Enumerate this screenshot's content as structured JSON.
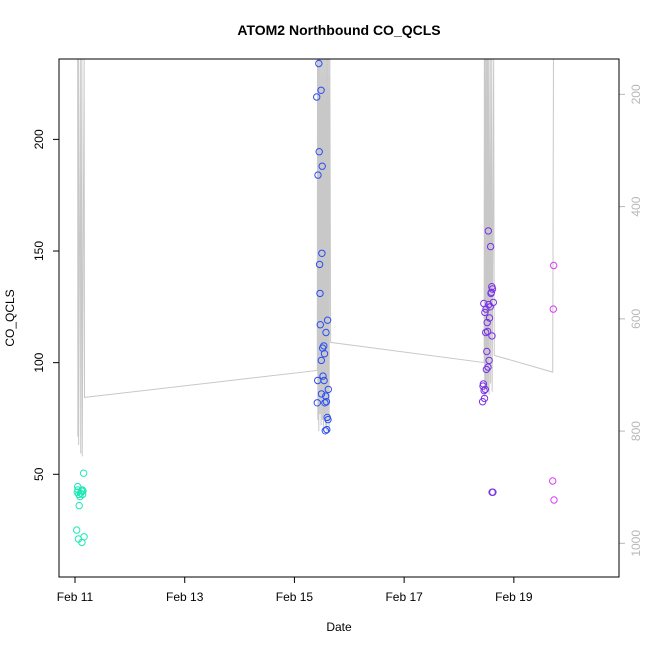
{
  "chart_data": {
    "type": "scatter",
    "title": "ATOM2 Northbound CO_QCLS",
    "xlabel": "Date",
    "ylabel": "CO_QCLS",
    "xlim": [
      "2016-02-10T17:00",
      "2016-02-20T22:00"
    ],
    "ylim": [
      4,
      236
    ],
    "x_ticks": [
      {
        "at": "2016-02-11",
        "label": "Feb 11"
      },
      {
        "at": "2016-02-13",
        "label": "Feb 13"
      },
      {
        "at": "2016-02-15",
        "label": "Feb 15"
      },
      {
        "at": "2016-02-17",
        "label": "Feb 17"
      },
      {
        "at": "2016-02-19",
        "label": "Feb 19"
      }
    ],
    "y_ticks": [
      50,
      100,
      150,
      200
    ],
    "y2_axis": {
      "ticks": [
        200,
        400,
        600,
        800,
        1000
      ],
      "range_top_to_bottom": [
        137,
        1060
      ],
      "color": "#b8b8b8"
    },
    "grid": false,
    "series": [
      {
        "color": "#1fe8b5",
        "points": [
          {
            "x": "2016-02-11T00:45",
            "y": 25
          },
          {
            "x": "2016-02-11T01:00",
            "y": 42
          },
          {
            "x": "2016-02-11T01:10",
            "y": 44.5
          },
          {
            "x": "2016-02-11T01:20",
            "y": 43
          },
          {
            "x": "2016-02-11T01:30",
            "y": 21
          },
          {
            "x": "2016-02-11T01:40",
            "y": 41
          },
          {
            "x": "2016-02-11T01:50",
            "y": 36
          },
          {
            "x": "2016-02-11T02:10",
            "y": 40
          },
          {
            "x": "2016-02-11T02:30",
            "y": 41.5
          },
          {
            "x": "2016-02-11T02:50",
            "y": 42.5
          },
          {
            "x": "2016-02-11T03:00",
            "y": 19.5
          },
          {
            "x": "2016-02-11T03:10",
            "y": 43
          },
          {
            "x": "2016-02-11T03:20",
            "y": 41
          },
          {
            "x": "2016-02-11T03:30",
            "y": 42.5
          },
          {
            "x": "2016-02-11T03:45",
            "y": 50.5
          },
          {
            "x": "2016-02-11T04:00",
            "y": 22
          }
        ]
      },
      {
        "color": "#2a4ef2",
        "points": [
          {
            "x": "2016-02-15T09:45",
            "y": 219
          },
          {
            "x": "2016-02-15T10:00",
            "y": 82
          },
          {
            "x": "2016-02-15T10:10",
            "y": 92
          },
          {
            "x": "2016-02-15T10:20",
            "y": 184
          },
          {
            "x": "2016-02-15T10:40",
            "y": 234
          },
          {
            "x": "2016-02-15T10:50",
            "y": 194.5
          },
          {
            "x": "2016-02-15T11:00",
            "y": 144
          },
          {
            "x": "2016-02-15T11:10",
            "y": 131
          },
          {
            "x": "2016-02-15T11:20",
            "y": 117
          },
          {
            "x": "2016-02-15T11:40",
            "y": 222
          },
          {
            "x": "2016-02-15T11:45",
            "y": 101
          },
          {
            "x": "2016-02-15T11:50",
            "y": 86
          },
          {
            "x": "2016-02-15T12:00",
            "y": 149
          },
          {
            "x": "2016-02-15T12:10",
            "y": 188
          },
          {
            "x": "2016-02-15T12:20",
            "y": 106.5
          },
          {
            "x": "2016-02-15T12:30",
            "y": 94
          },
          {
            "x": "2016-02-15T12:50",
            "y": 107.5
          },
          {
            "x": "2016-02-15T13:00",
            "y": 92
          },
          {
            "x": "2016-02-15T13:10",
            "y": 104
          },
          {
            "x": "2016-02-15T13:20",
            "y": 82
          },
          {
            "x": "2016-02-15T13:30",
            "y": 69.5
          },
          {
            "x": "2016-02-15T13:40",
            "y": 85
          },
          {
            "x": "2016-02-15T13:50",
            "y": 113.5
          },
          {
            "x": "2016-02-15T14:00",
            "y": 82.5
          },
          {
            "x": "2016-02-15T14:10",
            "y": 70
          },
          {
            "x": "2016-02-15T14:20",
            "y": 75.5
          },
          {
            "x": "2016-02-15T14:30",
            "y": 119
          },
          {
            "x": "2016-02-15T14:40",
            "y": 74.5
          },
          {
            "x": "2016-02-15T14:50",
            "y": 88
          }
        ]
      },
      {
        "color": "#7a32e6",
        "points": [
          {
            "x": "2016-02-18T10:20",
            "y": 82.5
          },
          {
            "x": "2016-02-18T10:30",
            "y": 89.5
          },
          {
            "x": "2016-02-18T10:40",
            "y": 90.5
          },
          {
            "x": "2016-02-18T10:50",
            "y": 126.5
          },
          {
            "x": "2016-02-18T11:00",
            "y": 87.5
          },
          {
            "x": "2016-02-18T11:10",
            "y": 84
          },
          {
            "x": "2016-02-18T11:20",
            "y": 122.5
          },
          {
            "x": "2016-02-18T11:30",
            "y": 88
          },
          {
            "x": "2016-02-18T11:40",
            "y": 113.5
          },
          {
            "x": "2016-02-18T11:50",
            "y": 124
          },
          {
            "x": "2016-02-18T12:00",
            "y": 97
          },
          {
            "x": "2016-02-18T12:10",
            "y": 105
          },
          {
            "x": "2016-02-18T12:20",
            "y": 118
          },
          {
            "x": "2016-02-18T12:30",
            "y": 114
          },
          {
            "x": "2016-02-18T12:40",
            "y": 98
          },
          {
            "x": "2016-02-18T12:50",
            "y": 159
          },
          {
            "x": "2016-02-18T13:00",
            "y": 126
          },
          {
            "x": "2016-02-18T13:10",
            "y": 101
          },
          {
            "x": "2016-02-18T13:20",
            "y": 120
          },
          {
            "x": "2016-02-18T13:40",
            "y": 125
          },
          {
            "x": "2016-02-18T13:50",
            "y": 152
          },
          {
            "x": "2016-02-18T14:00",
            "y": 131
          },
          {
            "x": "2016-02-18T14:10",
            "y": 131.5
          },
          {
            "x": "2016-02-18T14:20",
            "y": 134
          },
          {
            "x": "2016-02-18T14:25",
            "y": 112
          },
          {
            "x": "2016-02-18T14:30",
            "y": 42
          },
          {
            "x": "2016-02-18T14:40",
            "y": 133
          },
          {
            "x": "2016-02-18T14:50",
            "y": 42
          },
          {
            "x": "2016-02-18T15:00",
            "y": 127
          }
        ]
      },
      {
        "color": "#d63ff0",
        "points": [
          {
            "x": "2016-02-19T17:00",
            "y": 47
          },
          {
            "x": "2016-02-19T17:15",
            "y": 124
          },
          {
            "x": "2016-02-19T17:25",
            "y": 143.5
          },
          {
            "x": "2016-02-19T17:35",
            "y": 38.5
          }
        ]
      }
    ],
    "flight_track": {
      "color": "#c8c8c8",
      "points": [
        {
          "x": "2016-02-11T01:10",
          "y2": 88
        },
        {
          "x": "2016-02-11T01:15",
          "y2": 810
        },
        {
          "x": "2016-02-11T01:30",
          "y2": 88
        },
        {
          "x": "2016-02-11T01:35",
          "y2": 825
        },
        {
          "x": "2016-02-11T02:20",
          "y2": 88
        },
        {
          "x": "2016-02-11T02:30",
          "y2": 840
        },
        {
          "x": "2016-02-11T03:00",
          "y2": 88
        },
        {
          "x": "2016-02-11T03:10",
          "y2": 845
        },
        {
          "x": "2016-02-11T04:00",
          "y2": 88
        },
        {
          "x": "2016-02-11T04:10",
          "y2": 740
        },
        {
          "x": "2016-02-15T10:00",
          "y2": 692
        },
        {
          "x": "2016-02-15T10:05",
          "y2": 88
        },
        {
          "x": "2016-02-15T10:15",
          "y2": 780
        },
        {
          "x": "2016-02-15T10:30",
          "y2": 88
        },
        {
          "x": "2016-02-15T10:40",
          "y2": 800
        },
        {
          "x": "2016-02-15T11:00",
          "y2": 88
        },
        {
          "x": "2016-02-15T11:10",
          "y2": 770
        },
        {
          "x": "2016-02-15T11:30",
          "y2": 88
        },
        {
          "x": "2016-02-15T11:40",
          "y2": 790
        },
        {
          "x": "2016-02-15T12:00",
          "y2": 88
        },
        {
          "x": "2016-02-15T12:10",
          "y2": 780
        },
        {
          "x": "2016-02-15T12:30",
          "y2": 88
        },
        {
          "x": "2016-02-15T12:40",
          "y2": 800
        },
        {
          "x": "2016-02-15T13:00",
          "y2": 88
        },
        {
          "x": "2016-02-15T13:10",
          "y2": 770
        },
        {
          "x": "2016-02-15T13:30",
          "y2": 88
        },
        {
          "x": "2016-02-15T13:40",
          "y2": 790
        },
        {
          "x": "2016-02-15T14:00",
          "y2": 88
        },
        {
          "x": "2016-02-15T14:10",
          "y2": 800
        },
        {
          "x": "2016-02-15T14:30",
          "y2": 88
        },
        {
          "x": "2016-02-15T14:40",
          "y2": 780
        },
        {
          "x": "2016-02-15T15:00",
          "y2": 88
        },
        {
          "x": "2016-02-15T15:10",
          "y2": 800
        },
        {
          "x": "2016-02-15T15:30",
          "y2": 88
        },
        {
          "x": "2016-02-15T15:50",
          "y2": 642
        },
        {
          "x": "2016-02-18T11:00",
          "y2": 678
        },
        {
          "x": "2016-02-18T11:05",
          "y2": 88
        },
        {
          "x": "2016-02-18T11:15",
          "y2": 740
        },
        {
          "x": "2016-02-18T11:30",
          "y2": 88
        },
        {
          "x": "2016-02-18T11:40",
          "y2": 720
        },
        {
          "x": "2016-02-18T12:00",
          "y2": 88
        },
        {
          "x": "2016-02-18T12:10",
          "y2": 730
        },
        {
          "x": "2016-02-18T12:30",
          "y2": 88
        },
        {
          "x": "2016-02-18T12:40",
          "y2": 725
        },
        {
          "x": "2016-02-18T13:00",
          "y2": 88
        },
        {
          "x": "2016-02-18T13:10",
          "y2": 735
        },
        {
          "x": "2016-02-18T13:40",
          "y2": 88
        },
        {
          "x": "2016-02-18T13:50",
          "y2": 715
        },
        {
          "x": "2016-02-18T14:20",
          "y2": 88
        },
        {
          "x": "2016-02-18T14:30",
          "y2": 730
        },
        {
          "x": "2016-02-18T15:10",
          "y2": 88
        },
        {
          "x": "2016-02-18T15:25",
          "y2": 665
        },
        {
          "x": "2016-02-19T17:00",
          "y2": 695
        },
        {
          "x": "2016-02-19T17:20",
          "y2": 88
        }
      ]
    }
  }
}
